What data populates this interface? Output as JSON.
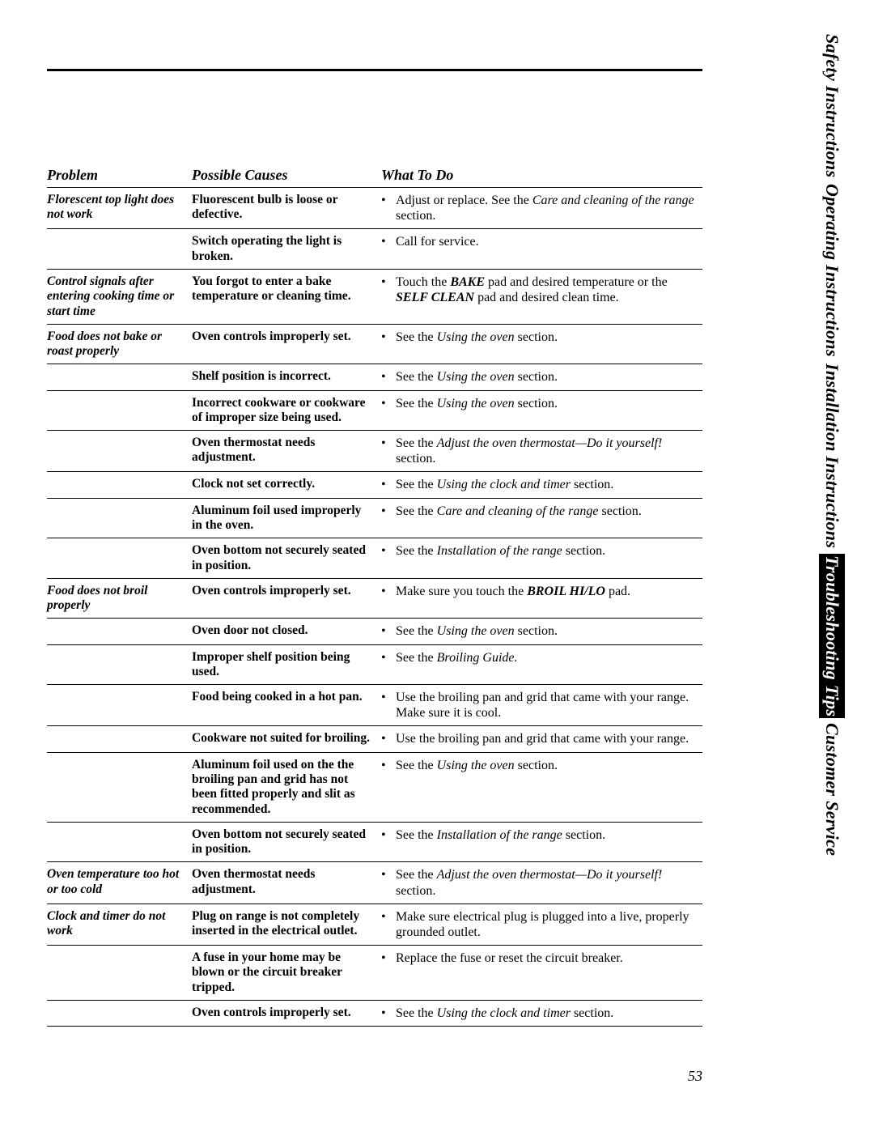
{
  "page_number": "53",
  "side_tabs": [
    {
      "label": "Safety Instructions",
      "active": false
    },
    {
      "label": "Operating Instructions",
      "active": false
    },
    {
      "label": "Installation Instructions",
      "active": false
    },
    {
      "label": "Troubleshooting Tips",
      "active": true
    },
    {
      "label": "Customer Service",
      "active": false
    }
  ],
  "colors": {
    "text": "#000000",
    "background": "#ffffff",
    "tab_active_bg": "#000000",
    "tab_active_fg": "#ffffff"
  },
  "columns": {
    "problem": "Problem",
    "causes": "Possible Causes",
    "what": "What To Do"
  },
  "sections": [
    {
      "problem": "Florescent top light does not work",
      "rows": [
        {
          "cause": "Fluorescent bulb is loose or defective.",
          "what_html": "Adjust or replace. See the <span class='em'>Care and cleaning of the range</span> section."
        },
        {
          "cause": "Switch operating the light is broken.",
          "what_html": "Call for service."
        }
      ]
    },
    {
      "problem": "Control signals after entering cooking time or start time",
      "rows": [
        {
          "cause": "You forgot to enter a bake temperature or cleaning time.",
          "what_html": "Touch the <span class='strong-em'>BAKE</span> pad and desired temperature or the <span class='strong-em'>SELF CLEAN</span> pad and desired clean time."
        }
      ]
    },
    {
      "problem": "Food does not bake or roast properly",
      "rows": [
        {
          "cause": "Oven controls improperly set.",
          "what_html": "See the <span class='em'>Using the oven</span> section."
        },
        {
          "cause": "Shelf position is incorrect.",
          "what_html": "See the <span class='em'>Using the oven</span> section."
        },
        {
          "cause": "Incorrect cookware or cookware of improper size being used.",
          "what_html": "See the <span class='em'>Using the oven</span> section."
        },
        {
          "cause": "Oven thermostat needs adjustment.",
          "what_html": "See the <span class='em'>Adjust the oven thermostat—Do it yourself!</span> section."
        },
        {
          "cause": "Clock not set correctly.",
          "what_html": "See the <span class='em'>Using the clock and timer</span> section."
        },
        {
          "cause": "Aluminum foil used improperly in the oven.",
          "what_html": "See the <span class='em'>Care and cleaning of the range</span> section."
        },
        {
          "cause": "Oven bottom not securely seated in position.",
          "what_html": "See the <span class='em'>Installation of the range</span> section."
        }
      ]
    },
    {
      "problem": "Food does not broil properly",
      "rows": [
        {
          "cause": "Oven controls improperly set.",
          "what_html": "Make sure you touch the <span class='strong-em'>BROIL HI/LO</span> pad."
        },
        {
          "cause": "Oven door not closed.",
          "what_html": "See the <span class='em'>Using the oven</span> section."
        },
        {
          "cause": "Improper shelf position being used.",
          "what_html": "See the <span class='em'>Broiling Guide.</span>"
        },
        {
          "cause": "Food being cooked in a hot pan.",
          "what_html": "Use the broiling pan and grid that came with your range. Make sure it is cool."
        },
        {
          "cause": "Cookware not suited for broiling.",
          "what_html": "Use the broiling pan and grid that came with your range."
        },
        {
          "cause": "Aluminum foil used on the the broiling pan and grid has not been fitted properly and slit as recommended.",
          "what_html": "See the <span class='em'>Using the oven</span> section."
        },
        {
          "cause": "Oven bottom not securely seated in position.",
          "what_html": "See the <span class='em'>Installation of the range</span> section."
        }
      ]
    },
    {
      "problem": "Oven temperature too hot or too cold",
      "rows": [
        {
          "cause": "Oven thermostat needs adjustment.",
          "what_html": "See the <span class='em'>Adjust the oven thermostat—Do it yourself!</span> section."
        }
      ]
    },
    {
      "problem": "Clock and timer do not work",
      "rows": [
        {
          "cause": "Plug on range is not completely inserted in the electrical outlet.",
          "what_html": "Make sure electrical plug is plugged into a live, properly grounded outlet."
        },
        {
          "cause": "A fuse in your home may be blown or the circuit breaker tripped.",
          "what_html": "Replace the fuse or reset the circuit breaker."
        },
        {
          "cause": "Oven controls improperly set.",
          "what_html": "See the <span class='em'>Using the clock and timer</span> section."
        }
      ]
    }
  ]
}
